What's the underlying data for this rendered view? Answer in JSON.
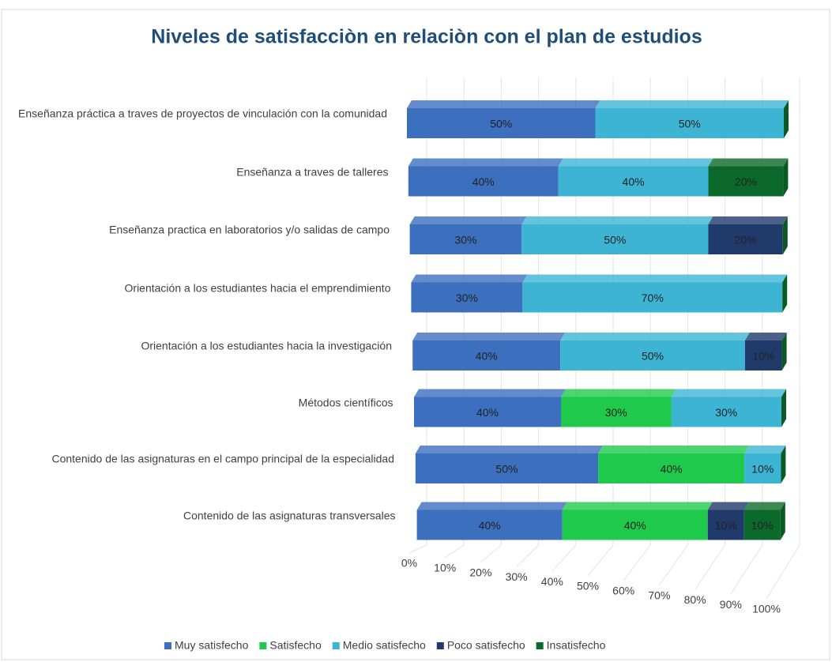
{
  "chart_data": {
    "type": "bar3d-stacked-horizontal",
    "title": "Niveles de satisfacciòn en relaciòn con el plan de estudios",
    "categories": [
      "Enseñanza práctica a traves de proyectos de vinculación con la comunidad",
      "Enseñanza a traves de talleres",
      "Enseñanza practica en laboratorios y/o salidas de campo",
      "Orientación a los estudiantes hacia el emprendimiento",
      "Orientación a los estudiantes hacia la investigación",
      "Métodos científicos",
      "Contenido de las asignaturas en el campo principal de la especialidad",
      "Contenido de las asignaturas transversales"
    ],
    "series": [
      {
        "name": "Muy satisfecho",
        "color": "#3d6fbf",
        "values": [
          50,
          40,
          30,
          30,
          40,
          40,
          50,
          40
        ],
        "value_labels": [
          "50%",
          "40%",
          "30%",
          "30%",
          "40%",
          "40%",
          "50%",
          "40%"
        ]
      },
      {
        "name": "Satisfecho",
        "color": "#1ec94c",
        "values": [
          null,
          null,
          null,
          null,
          null,
          30,
          40,
          40
        ],
        "value_labels": [
          null,
          null,
          null,
          null,
          null,
          "30%",
          "40%",
          "40%"
        ]
      },
      {
        "name": "Medio satisfecho",
        "color": "#3db4d4",
        "values": [
          50,
          40,
          50,
          70,
          50,
          30,
          10,
          null
        ],
        "value_labels": [
          "50%",
          "40%",
          "50%",
          "70%",
          "50%",
          "30%",
          "10%",
          null
        ]
      },
      {
        "name": "Poco satisfecho",
        "color": "#1f3a6b",
        "values": [
          null,
          null,
          20,
          null,
          10,
          null,
          null,
          10
        ],
        "value_labels": [
          null,
          null,
          "20%",
          null,
          "10%",
          null,
          null,
          "10%"
        ]
      },
      {
        "name": "Insatisfecho",
        "color": "#0b6a2b",
        "values": [
          null,
          20,
          null,
          null,
          null,
          null,
          null,
          10
        ],
        "value_labels": [
          null,
          "20%",
          null,
          null,
          null,
          null,
          null,
          "10%"
        ]
      }
    ],
    "xlim": [
      0,
      100
    ],
    "xticks": [
      {
        "value": 0,
        "label": "0%"
      },
      {
        "value": 10,
        "label": "10%"
      },
      {
        "value": 20,
        "label": "20%"
      },
      {
        "value": 30,
        "label": "30%"
      },
      {
        "value": 40,
        "label": "40%"
      },
      {
        "value": 50,
        "label": "50%"
      },
      {
        "value": 60,
        "label": "60%"
      },
      {
        "value": 70,
        "label": "70%"
      },
      {
        "value": 80,
        "label": "80%"
      },
      {
        "value": 90,
        "label": "90%"
      },
      {
        "value": 100,
        "label": "100%"
      }
    ],
    "grid": true,
    "legend": "bottom"
  }
}
